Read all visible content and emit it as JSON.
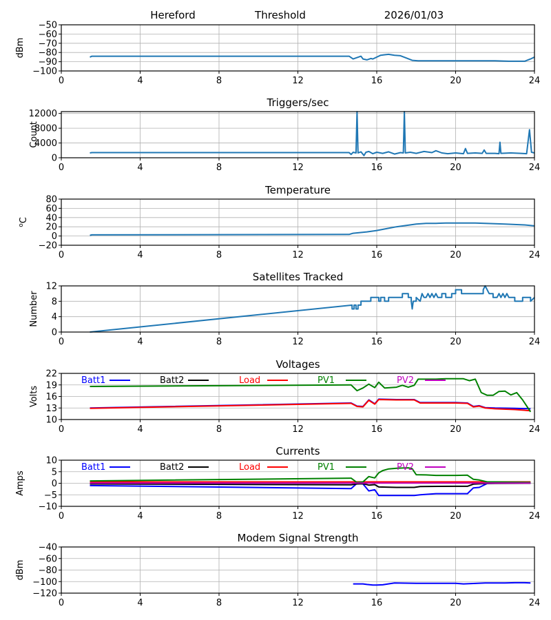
{
  "header": {
    "station": "Hereford",
    "mode": "Threshold",
    "date": "2026/01/03"
  },
  "chart_data": [
    {
      "id": "threshold",
      "type": "line",
      "title": "",
      "xlabel": "",
      "ylabel": "dBm",
      "xlim": [
        0,
        24
      ],
      "ylim": [
        -100,
        -50
      ],
      "xticks": [
        0,
        4,
        8,
        12,
        16,
        20,
        24
      ],
      "yticks": [
        -50,
        -60,
        -70,
        -80,
        -90,
        -100
      ],
      "ytick_labels": [
        "−50",
        "−60",
        "−70",
        "−80",
        "−90",
        "−100"
      ],
      "grid": true,
      "series": [
        {
          "name": "Threshold",
          "color": "#1f77b4",
          "x": [
            1.45,
            1.55,
            14.6,
            14.8,
            15.0,
            15.2,
            15.3,
            15.5,
            15.7,
            15.8,
            16.0,
            16.2,
            16.4,
            16.6,
            16.9,
            17.2,
            17.5,
            17.8,
            18.1,
            19.0,
            20.0,
            21.0,
            22.0,
            22.7,
            23.5,
            23.8,
            24.0
          ],
          "y": [
            -85,
            -84,
            -84,
            -87,
            -85.5,
            -84,
            -87,
            -88,
            -86.5,
            -87,
            -85,
            -83,
            -82.5,
            -82,
            -83,
            -83.5,
            -86,
            -88.5,
            -89,
            -89,
            -89,
            -89,
            -89,
            -89.5,
            -89.5,
            -87,
            -85
          ]
        }
      ]
    },
    {
      "id": "triggers",
      "type": "line",
      "title": "Triggers/sec",
      "xlabel": "",
      "ylabel": "Count",
      "xlim": [
        0,
        24
      ],
      "ylim": [
        0,
        12500
      ],
      "xticks": [
        0,
        4,
        8,
        12,
        16,
        20,
        24
      ],
      "yticks": [
        0,
        4000,
        8000,
        12000
      ],
      "ytick_labels": [
        "0",
        "4000",
        "8000",
        "12000"
      ],
      "grid": true,
      "series": [
        {
          "name": "Triggers",
          "color": "#1f77b4",
          "x": [
            1.45,
            1.55,
            14.6,
            14.7,
            14.8,
            14.95,
            15.0,
            15.05,
            15.2,
            15.35,
            15.45,
            15.6,
            15.8,
            16.0,
            16.3,
            16.6,
            16.9,
            17.2,
            17.35,
            17.4,
            17.45,
            17.7,
            18.0,
            18.4,
            18.8,
            19.0,
            19.3,
            19.6,
            20.0,
            20.4,
            20.5,
            20.6,
            21.0,
            21.35,
            21.45,
            21.55,
            22.0,
            22.2,
            22.25,
            22.3,
            22.8,
            23.3,
            23.6,
            23.75,
            23.85,
            24.0
          ],
          "y": [
            1300,
            1400,
            1400,
            900,
            1500,
            1300,
            12500,
            1300,
            1600,
            600,
            1500,
            1700,
            1100,
            1500,
            1200,
            1600,
            1000,
            1400,
            1300,
            12500,
            1300,
            1500,
            1200,
            1700,
            1400,
            1900,
            1300,
            1100,
            1300,
            1100,
            2500,
            1200,
            1300,
            1200,
            2100,
            1200,
            1200,
            1100,
            4200,
            1200,
            1300,
            1200,
            1100,
            7600,
            1500,
            1300
          ]
        }
      ]
    },
    {
      "id": "temperature",
      "type": "line",
      "title": "Temperature",
      "xlabel": "",
      "ylabel": "°C",
      "ylabel_display": "oC",
      "xlim": [
        0,
        24
      ],
      "ylim": [
        -20,
        80
      ],
      "xticks": [
        0,
        4,
        8,
        12,
        16,
        20,
        24
      ],
      "yticks": [
        -20,
        0,
        20,
        40,
        60,
        80
      ],
      "ytick_labels": [
        "−20",
        "0",
        "20",
        "40",
        "60",
        "80"
      ],
      "grid": true,
      "series": [
        {
          "name": "Temperature",
          "color": "#1f77b4",
          "x": [
            1.45,
            1.55,
            14.6,
            14.8,
            15.5,
            16.0,
            16.5,
            17.0,
            17.5,
            18.0,
            18.5,
            19.0,
            19.5,
            20.0,
            20.5,
            21.0,
            21.5,
            22.0,
            22.5,
            23.0,
            23.5,
            24.0
          ],
          "y": [
            1.5,
            2.5,
            3.5,
            6,
            9,
            12,
            16,
            20,
            23,
            26,
            27.5,
            27.5,
            28,
            28,
            28,
            28,
            27.5,
            26.5,
            26,
            25,
            24,
            22
          ]
        }
      ]
    },
    {
      "id": "satellites",
      "type": "line",
      "title": "Satellites Tracked",
      "xlabel": "",
      "ylabel": "Number",
      "xlim": [
        0,
        24
      ],
      "ylim": [
        0,
        12
      ],
      "xticks": [
        0,
        4,
        8,
        12,
        16,
        20,
        24
      ],
      "yticks": [
        0,
        4,
        8,
        12
      ],
      "ytick_labels": [
        "0",
        "4",
        "8",
        "12"
      ],
      "grid": true,
      "series": [
        {
          "name": "Satellites",
          "color": "#1f77b4",
          "x": [
            1.45,
            14.75,
            14.75,
            14.85,
            14.85,
            14.95,
            14.95,
            15.05,
            15.05,
            15.2,
            15.2,
            15.7,
            15.7,
            16.1,
            16.1,
            16.2,
            16.2,
            16.4,
            16.4,
            16.6,
            16.6,
            16.9,
            16.9,
            17.3,
            17.3,
            17.6,
            17.6,
            17.75,
            17.75,
            17.8,
            17.85,
            18.0,
            18.0,
            18.2,
            18.3,
            18.4,
            18.5,
            18.6,
            18.7,
            18.8,
            18.9,
            19.0,
            19.1,
            19.3,
            19.3,
            19.5,
            19.5,
            19.8,
            19.8,
            20.0,
            20.0,
            20.3,
            20.3,
            21.4,
            21.4,
            21.5,
            21.6,
            21.7,
            21.8,
            21.9,
            21.9,
            22.1,
            22.2,
            22.3,
            22.4,
            22.5,
            22.6,
            22.7,
            22.8,
            23.0,
            23.0,
            23.4,
            23.4,
            23.8,
            23.8,
            24.0
          ],
          "y": [
            0,
            7,
            6,
            6,
            7,
            7,
            6,
            6,
            7,
            7,
            8,
            8,
            9,
            9,
            8,
            8,
            9,
            9,
            8,
            8,
            9,
            9,
            9,
            9,
            10,
            10,
            9,
            9,
            8,
            6,
            8,
            8,
            9,
            8,
            10,
            9,
            9,
            10,
            9,
            10,
            9,
            10,
            9,
            9,
            10,
            10,
            9,
            9,
            10,
            10,
            11,
            11,
            10,
            10,
            11,
            12,
            11,
            10,
            10,
            10,
            9,
            9,
            10,
            9,
            10,
            9,
            10,
            9,
            9,
            9,
            8,
            8,
            9,
            9,
            8,
            9
          ]
        }
      ]
    },
    {
      "id": "voltages",
      "type": "line",
      "title": "Voltages",
      "xlabel": "",
      "ylabel": "Volts",
      "xlim": [
        0,
        24
      ],
      "ylim": [
        10,
        22
      ],
      "xticks": [
        0,
        4,
        8,
        12,
        16,
        20,
        24
      ],
      "yticks": [
        10,
        13,
        16,
        19,
        22
      ],
      "ytick_labels": [
        "10",
        "13",
        "16",
        "19",
        "22"
      ],
      "grid": true,
      "legend": "top",
      "series": [
        {
          "name": "Batt1",
          "color": "#0000ff",
          "x": [
            1.45,
            14.7,
            15.0,
            15.3,
            15.6,
            15.9,
            16.1,
            17.0,
            17.9,
            18.2,
            20.0,
            20.6,
            20.9,
            21.2,
            21.5,
            22.0,
            23.0,
            23.8
          ],
          "y": [
            13.0,
            14.3,
            13.5,
            13.4,
            15.1,
            14.1,
            15.3,
            15.2,
            15.2,
            14.4,
            14.4,
            14.3,
            13.4,
            13.6,
            13.1,
            13.0,
            12.9,
            12.8
          ]
        },
        {
          "name": "Batt2",
          "color": "#000000",
          "x": [],
          "y": []
        },
        {
          "name": "Load",
          "color": "#ff0000",
          "x": [
            1.45,
            14.7,
            15.0,
            15.3,
            15.6,
            15.9,
            16.1,
            17.0,
            17.9,
            18.2,
            20.0,
            20.6,
            20.9,
            21.2,
            21.5,
            22.0,
            23.0,
            23.8
          ],
          "y": [
            12.9,
            14.2,
            13.4,
            13.3,
            15.0,
            14.0,
            15.2,
            15.1,
            15.1,
            14.3,
            14.3,
            14.2,
            13.3,
            13.5,
            13.0,
            12.8,
            12.6,
            12.3
          ]
        },
        {
          "name": "PV1",
          "color": "#008000",
          "x": [
            1.45,
            14.7,
            15.0,
            15.3,
            15.6,
            15.9,
            16.1,
            16.4,
            17.0,
            17.3,
            17.6,
            17.9,
            18.1,
            19.0,
            19.5,
            20.0,
            20.4,
            20.7,
            21.0,
            21.3,
            21.6,
            21.9,
            22.2,
            22.5,
            22.8,
            23.1,
            23.4,
            23.8
          ],
          "y": [
            18.6,
            19.0,
            17.5,
            18.2,
            19.2,
            18.3,
            19.7,
            18.2,
            18.4,
            18.9,
            18.4,
            18.9,
            20.5,
            20.5,
            20.6,
            20.6,
            20.6,
            20.1,
            20.5,
            17.0,
            16.3,
            16.3,
            17.3,
            17.4,
            16.4,
            17.0,
            15.1,
            12.0
          ]
        },
        {
          "name": "PV2",
          "color": "#bf00bf",
          "x": [],
          "y": []
        }
      ]
    },
    {
      "id": "currents",
      "type": "line",
      "title": "Currents",
      "xlabel": "",
      "ylabel": "Amps",
      "xlim": [
        0,
        24
      ],
      "ylim": [
        -10,
        10
      ],
      "xticks": [
        0,
        4,
        8,
        12,
        16,
        20,
        24
      ],
      "yticks": [
        -10,
        -5,
        0,
        5,
        10
      ],
      "ytick_labels": [
        "−10",
        "−5",
        "0",
        "5",
        "10"
      ],
      "grid": true,
      "legend": "top",
      "series": [
        {
          "name": "Batt1",
          "color": "#0000ff",
          "x": [
            1.45,
            14.7,
            15.0,
            15.3,
            15.6,
            15.9,
            16.1,
            17.0,
            17.9,
            18.2,
            19.0,
            20.0,
            20.6,
            20.9,
            21.2,
            21.6,
            22.0,
            23.8
          ],
          "y": [
            -1.0,
            -2.3,
            0.0,
            -0.3,
            -3.3,
            -2.8,
            -5.3,
            -5.3,
            -5.3,
            -5.0,
            -4.5,
            -4.5,
            -4.5,
            -2.0,
            -1.8,
            -0.1,
            0.0,
            0.0
          ]
        },
        {
          "name": "Batt2",
          "color": "#000000",
          "x": [
            1.45,
            14.7,
            15.0,
            15.3,
            15.6,
            15.9,
            16.1,
            17.0,
            17.9,
            18.2,
            20.0,
            20.6,
            20.9,
            21.6,
            23.8
          ],
          "y": [
            -0.3,
            -0.7,
            -0.3,
            -0.2,
            -0.8,
            -0.6,
            -1.6,
            -1.8,
            -1.8,
            -1.4,
            -1.3,
            -1.3,
            -0.4,
            -0.1,
            0.0
          ]
        },
        {
          "name": "Load",
          "color": "#ff0000",
          "x": [
            1.45,
            23.8
          ],
          "y": [
            0.6,
            0.6
          ]
        },
        {
          "name": "PV1",
          "color": "#008000",
          "x": [
            1.45,
            14.7,
            15.0,
            15.3,
            15.6,
            15.9,
            16.1,
            16.3,
            16.6,
            17.0,
            17.3,
            17.6,
            17.8,
            18.0,
            18.5,
            19.0,
            20.0,
            20.6,
            20.9,
            21.2,
            21.6,
            22.0,
            23.8
          ],
          "y": [
            1.0,
            2.2,
            0.3,
            0.6,
            2.9,
            2.3,
            4.5,
            5.5,
            6.2,
            6.5,
            6.6,
            6.7,
            6.3,
            3.7,
            3.6,
            3.4,
            3.4,
            3.5,
            1.7,
            1.4,
            0.6,
            0.6,
            0.4
          ]
        },
        {
          "name": "PV2",
          "color": "#bf00bf",
          "x": [
            1.45,
            23.8
          ],
          "y": [
            0.1,
            0.1
          ]
        }
      ]
    },
    {
      "id": "modem",
      "type": "line",
      "title": "Modem Signal Strength",
      "xlabel": "",
      "ylabel": "dBm",
      "xlim": [
        0,
        24
      ],
      "ylim": [
        -120,
        -40
      ],
      "xticks": [
        0,
        4,
        8,
        12,
        16,
        20,
        24
      ],
      "yticks": [
        -120,
        -100,
        -80,
        -60,
        -40
      ],
      "ytick_labels": [
        "−120",
        "−100",
        "−80",
        "−60",
        "−40"
      ],
      "grid": true,
      "series": [
        {
          "name": "Modem",
          "color": "#0000ff",
          "x": [
            14.8,
            15.3,
            15.5,
            15.8,
            16.0,
            16.3,
            16.9,
            18.0,
            19.0,
            20.0,
            20.4,
            21.5,
            22.5,
            23.0,
            23.5,
            23.8
          ],
          "y": [
            -104,
            -104,
            -105,
            -106,
            -106,
            -105.5,
            -102.5,
            -103,
            -103,
            -103,
            -104,
            -102.5,
            -102.5,
            -102,
            -102,
            -102.5
          ]
        }
      ]
    }
  ]
}
